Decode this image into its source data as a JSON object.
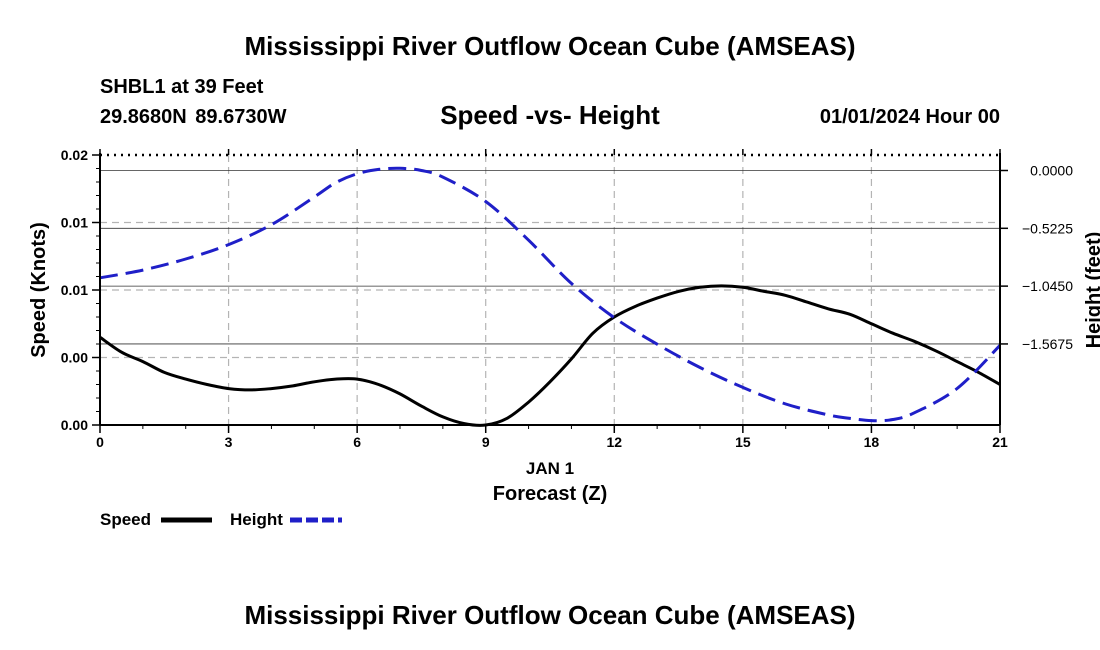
{
  "header": {
    "title": "Mississippi River Outflow Ocean Cube (AMSEAS)",
    "station": "SHBL1 at 39 Feet",
    "coordinates": "29.8680N  89.6730W",
    "subtitle": "Speed -vs- Height",
    "datetime": "01/01/2024 Hour 00"
  },
  "footer": {
    "title": "Mississippi River Outflow Ocean Cube (AMSEAS)"
  },
  "chart_data": {
    "type": "line",
    "title": "Speed -vs- Height",
    "xlabel": "Forecast (Z)",
    "x_date_label": "JAN 1",
    "xlim": [
      0,
      21
    ],
    "x_ticks": [
      0,
      3,
      6,
      9,
      12,
      15,
      18,
      21
    ],
    "x_tick_labels": [
      "0",
      "3",
      "6",
      "9",
      "12",
      "15",
      "18",
      "21"
    ],
    "ylabel_left": "Speed (Knots)",
    "ylim_left": [
      0,
      0.02
    ],
    "y_left_ticks": [
      0,
      0.005,
      0.01,
      0.015,
      0.02
    ],
    "y_left_tick_labels": [
      "0.00",
      "0.00",
      "0.01",
      "0.01",
      "0.02"
    ],
    "ylabel_right": "Height (feet)",
    "ylim_right": [
      -2.3,
      0.14
    ],
    "y_right_ticks": [
      0.0,
      -0.5225,
      -1.045,
      -1.5675
    ],
    "y_right_tick_labels": [
      "0.0000",
      "−0.5225",
      "−1.0450",
      "−1.5675"
    ],
    "grid": true,
    "series": [
      {
        "name": "Speed",
        "axis": "left",
        "color": "#000000",
        "style": "solid",
        "x": [
          0,
          0.5,
          1,
          1.5,
          2,
          2.5,
          3,
          3.5,
          4,
          4.5,
          5,
          5.5,
          6,
          6.5,
          7,
          7.5,
          8,
          8.5,
          9,
          9.5,
          10,
          10.5,
          11,
          11.5,
          12,
          12.5,
          13,
          13.5,
          14,
          14.5,
          15,
          15.5,
          16,
          16.5,
          17,
          17.5,
          18,
          18.5,
          19,
          19.5,
          20,
          20.5,
          21
        ],
        "values": [
          0.0065,
          0.0054,
          0.0047,
          0.0039,
          0.0034,
          0.003,
          0.0027,
          0.0026,
          0.0027,
          0.0029,
          0.0032,
          0.0034,
          0.0034,
          0.003,
          0.0023,
          0.0014,
          0.0006,
          0.0001,
          0.0,
          0.0005,
          0.0017,
          0.0032,
          0.0049,
          0.0068,
          0.008,
          0.0088,
          0.0094,
          0.0099,
          0.0102,
          0.0103,
          0.0102,
          0.0099,
          0.0096,
          0.0091,
          0.0086,
          0.0082,
          0.0075,
          0.0068,
          0.0062,
          0.0055,
          0.0047,
          0.0039,
          0.003
        ]
      },
      {
        "name": "Height",
        "axis": "right",
        "color": "#1f1fc8",
        "style": "dashed",
        "x": [
          0,
          1,
          2,
          3,
          4,
          5,
          5.5,
          6,
          6.5,
          7,
          7.5,
          8,
          9,
          10,
          11,
          12,
          13,
          14,
          15,
          16,
          17,
          17.5,
          18,
          18.5,
          19,
          20,
          21
        ],
        "values": [
          -0.97,
          -0.9,
          -0.8,
          -0.67,
          -0.49,
          -0.24,
          -0.11,
          -0.03,
          0.01,
          0.02,
          0.0,
          -0.06,
          -0.28,
          -0.63,
          -1.02,
          -1.33,
          -1.57,
          -1.78,
          -1.96,
          -2.11,
          -2.21,
          -2.24,
          -2.26,
          -2.25,
          -2.19,
          -1.97,
          -1.58
        ]
      }
    ],
    "legend": {
      "placement": "bottom-left",
      "entries": [
        "Speed",
        "Height"
      ]
    }
  }
}
